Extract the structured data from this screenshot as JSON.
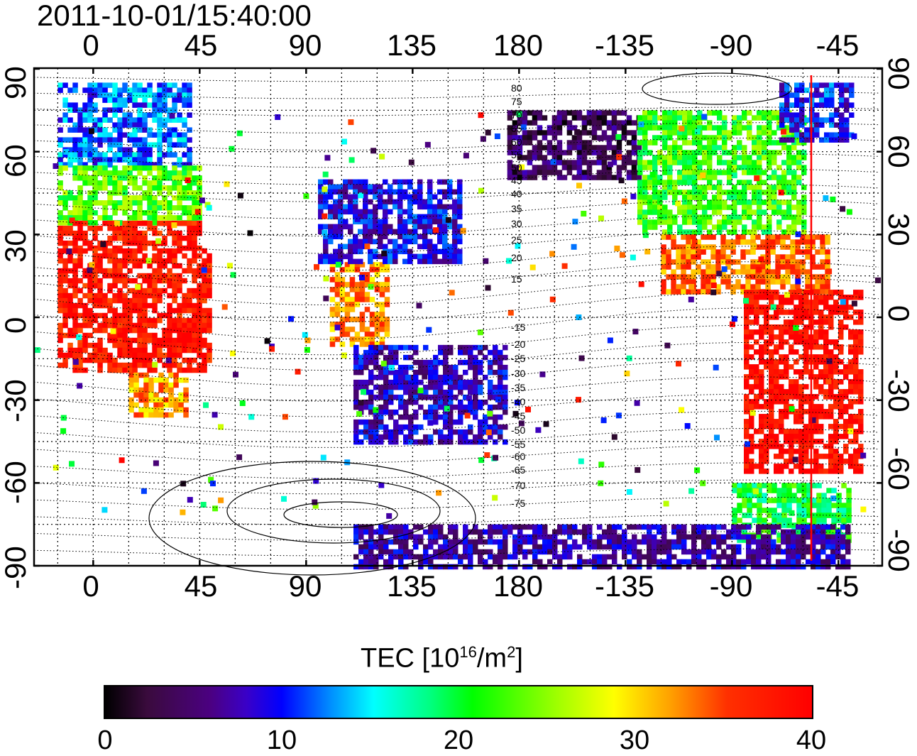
{
  "title": "2011-10-01/15:40:00",
  "axes": {
    "top_ticks": [
      "0",
      "45",
      "90",
      "135",
      "180",
      "-135",
      "-90",
      "-45"
    ],
    "bottom_ticks": [
      "0",
      "45",
      "90",
      "135",
      "180",
      "-135",
      "-90",
      "-45"
    ],
    "left_ticks": [
      "90",
      "60",
      "30",
      "0",
      "-30",
      "-60",
      "-90"
    ],
    "right_ticks": [
      "90",
      "60",
      "30",
      "0",
      "-30",
      "-60",
      "-90"
    ]
  },
  "contour_labels": [
    "80",
    "75",
    "70",
    "65",
    "60",
    "55",
    "50",
    "45",
    "40",
    "35",
    "30",
    "25",
    "20",
    "15",
    "-15",
    "-20",
    "-25",
    "-30",
    "-35",
    "-40",
    "-45",
    "-50",
    "-55",
    "-60",
    "-65",
    "-70",
    "-75"
  ],
  "colorbar": {
    "title_prefix": "TEC  [10",
    "title_sup1": "16",
    "title_mid": "/m",
    "title_sup2": "2",
    "title_suffix": "]",
    "ticks": [
      "0",
      "10",
      "20",
      "30",
      "40"
    ]
  },
  "colors": {
    "terminator_line": "#ff0000"
  },
  "chart_data": {
    "type": "heatmap",
    "variable": "TEC",
    "units": "10^16/m^2",
    "color_scale_range": [
      0,
      40
    ],
    "x_ticks_lon": [
      0,
      45,
      90,
      135,
      180,
      -135,
      -90,
      -45
    ],
    "y_ticks_lat": [
      90,
      60,
      30,
      0,
      -30,
      -60,
      -90
    ],
    "red_line_lon": -55,
    "regions": [
      {
        "lon": [
          -15,
          40
        ],
        "lat": [
          55,
          85
        ],
        "tec": 12
      },
      {
        "lon": [
          -15,
          45
        ],
        "lat": [
          35,
          55
        ],
        "tec": 23
      },
      {
        "lon": [
          -15,
          45
        ],
        "lat": [
          25,
          35
        ],
        "tec": 38
      },
      {
        "lon": [
          -15,
          50
        ],
        "lat": [
          -20,
          25
        ],
        "tec": 38
      },
      {
        "lon": [
          15,
          40
        ],
        "lat": [
          -35,
          -20
        ],
        "tec": 32
      },
      {
        "lon": [
          100,
          125
        ],
        "lat": [
          -10,
          20
        ],
        "tec": 33
      },
      {
        "lon": [
          95,
          155
        ],
        "lat": [
          20,
          50
        ],
        "tec": 9
      },
      {
        "lon": [
          110,
          175
        ],
        "lat": [
          -45,
          -10
        ],
        "tec": 8
      },
      {
        "lon": [
          175,
          -130
        ],
        "lat": [
          50,
          75
        ],
        "tec": 4
      },
      {
        "lon": [
          -130,
          -60
        ],
        "lat": [
          30,
          75
        ],
        "tec": 22
      },
      {
        "lon": [
          -120,
          -50
        ],
        "lat": [
          10,
          30
        ],
        "tec": 34
      },
      {
        "lon": [
          -85,
          -35
        ],
        "lat": [
          -55,
          10
        ],
        "tec": 39
      },
      {
        "lon": [
          -90,
          -40
        ],
        "lat": [
          -80,
          -60
        ],
        "tec": 20
      },
      {
        "lon": [
          110,
          -40
        ],
        "lat": [
          -90,
          -75
        ],
        "tec": 7
      },
      {
        "lon": [
          -70,
          -40
        ],
        "lat": [
          65,
          85
        ],
        "tec": 10
      }
    ]
  }
}
